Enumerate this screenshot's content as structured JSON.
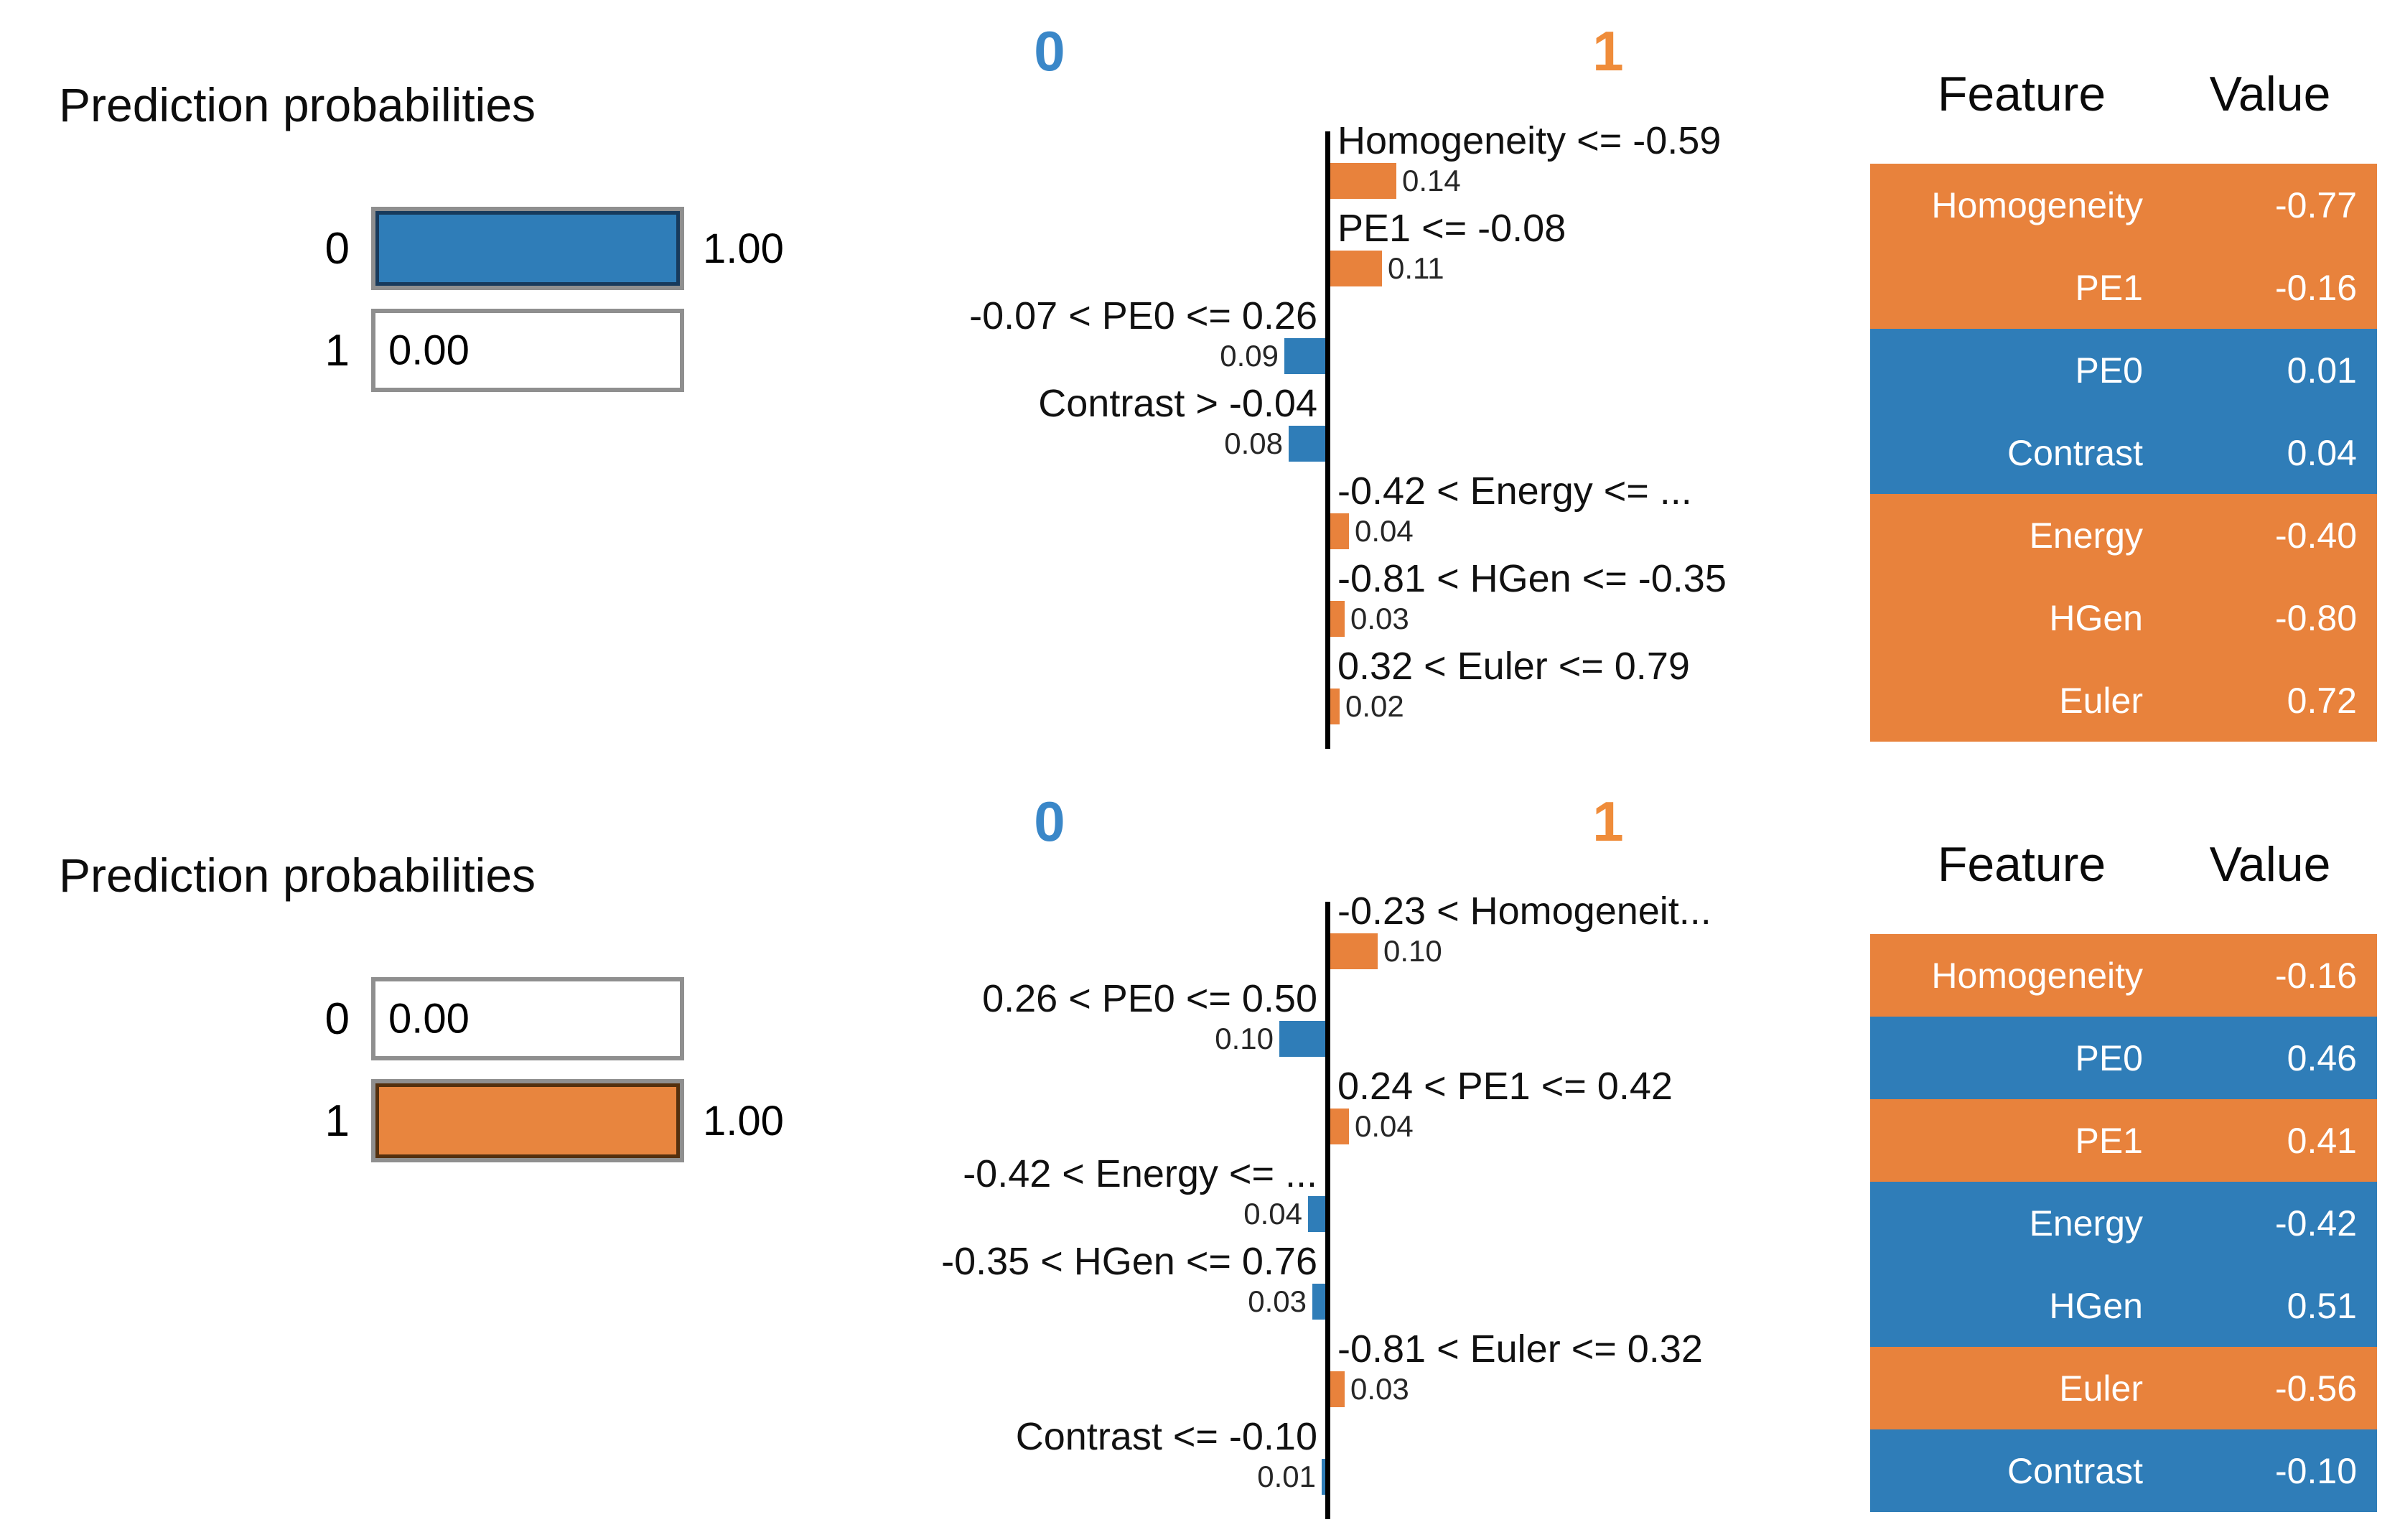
{
  "colors": {
    "class0_blue": "#2f7db8",
    "class1_orange": "#e8823c",
    "header0_blue": "#3a87c8",
    "header1_orange": "#ef8c3a"
  },
  "explanations": [
    {
      "prediction": {
        "title": "Prediction probabilities",
        "classes": [
          {
            "label": "0",
            "prob": 1,
            "prob_label": "1.00",
            "fill": "blue"
          },
          {
            "label": "1",
            "prob": 0,
            "prob_label": "0.00",
            "fill": "none"
          }
        ]
      },
      "chart": {
        "class0_header": "0",
        "class1_header": "1",
        "features": [
          {
            "label": "Homogeneity <= -0.59",
            "weight": 0.14,
            "weight_label": "0.14",
            "side": "right",
            "supports_class": "1"
          },
          {
            "label": "PE1 <= -0.08",
            "weight": 0.11,
            "weight_label": "0.11",
            "side": "right",
            "supports_class": "1"
          },
          {
            "label": "-0.07 < PE0 <= 0.26",
            "weight": 0.09,
            "weight_label": "0.09",
            "side": "left",
            "supports_class": "0"
          },
          {
            "label": "Contrast > -0.04",
            "weight": 0.08,
            "weight_label": "0.08",
            "side": "left",
            "supports_class": "0"
          },
          {
            "label": "-0.42 < Energy <= ...",
            "weight": 0.04,
            "weight_label": "0.04",
            "side": "right",
            "supports_class": "1"
          },
          {
            "label": "-0.81 < HGen <= -0.35",
            "weight": 0.03,
            "weight_label": "0.03",
            "side": "right",
            "supports_class": "1"
          },
          {
            "label": "0.32 < Euler <= 0.79",
            "weight": 0.02,
            "weight_label": "0.02",
            "side": "right",
            "supports_class": "1"
          }
        ]
      },
      "table": {
        "feature_header": "Feature",
        "value_header": "Value",
        "rows": [
          {
            "feature": "Homogeneity",
            "value": "-0.77",
            "color": "orange"
          },
          {
            "feature": "PE1",
            "value": "-0.16",
            "color": "orange"
          },
          {
            "feature": "PE0",
            "value": "0.01",
            "color": "blue"
          },
          {
            "feature": "Contrast",
            "value": "0.04",
            "color": "blue"
          },
          {
            "feature": "Energy",
            "value": "-0.40",
            "color": "orange"
          },
          {
            "feature": "HGen",
            "value": "-0.80",
            "color": "orange"
          },
          {
            "feature": "Euler",
            "value": "0.72",
            "color": "orange"
          }
        ]
      }
    },
    {
      "prediction": {
        "title": "Prediction probabilities",
        "classes": [
          {
            "label": "0",
            "prob": 0,
            "prob_label": "0.00",
            "fill": "none"
          },
          {
            "label": "1",
            "prob": 1,
            "prob_label": "1.00",
            "fill": "orange"
          }
        ]
      },
      "chart": {
        "class0_header": "0",
        "class1_header": "1",
        "features": [
          {
            "label": "-0.23 < Homogeneit...",
            "weight": 0.1,
            "weight_label": "0.10",
            "side": "right",
            "supports_class": "1"
          },
          {
            "label": "0.26 < PE0 <= 0.50",
            "weight": 0.1,
            "weight_label": "0.10",
            "side": "left",
            "supports_class": "0"
          },
          {
            "label": "0.24 < PE1 <= 0.42",
            "weight": 0.04,
            "weight_label": "0.04",
            "side": "right",
            "supports_class": "1"
          },
          {
            "label": "-0.42 < Energy <= ...",
            "weight": 0.04,
            "weight_label": "0.04",
            "side": "left",
            "supports_class": "0"
          },
          {
            "label": "-0.35 < HGen <= 0.76",
            "weight": 0.03,
            "weight_label": "0.03",
            "side": "left",
            "supports_class": "0"
          },
          {
            "label": "-0.81 < Euler <= 0.32",
            "weight": 0.03,
            "weight_label": "0.03",
            "side": "right",
            "supports_class": "1"
          },
          {
            "label": "Contrast <= -0.10",
            "weight": 0.01,
            "weight_label": "0.01",
            "side": "left",
            "supports_class": "0"
          }
        ]
      },
      "table": {
        "feature_header": "Feature",
        "value_header": "Value",
        "rows": [
          {
            "feature": "Homogeneity",
            "value": "-0.16",
            "color": "orange"
          },
          {
            "feature": "PE0",
            "value": "0.46",
            "color": "blue"
          },
          {
            "feature": "PE1",
            "value": "0.41",
            "color": "orange"
          },
          {
            "feature": "Energy",
            "value": "-0.42",
            "color": "blue"
          },
          {
            "feature": "HGen",
            "value": "0.51",
            "color": "blue"
          },
          {
            "feature": "Euler",
            "value": "-0.56",
            "color": "orange"
          },
          {
            "feature": "Contrast",
            "value": "-0.10",
            "color": "blue"
          }
        ]
      }
    }
  ],
  "chart_data": [
    {
      "type": "bar",
      "title": "Prediction probabilities",
      "legend": [
        "0",
        "1"
      ],
      "prediction_probabilities": {
        "0": 1.0,
        "1": 0.0
      },
      "feature_contributions": [
        {
          "condition": "Homogeneity <= -0.59",
          "weight": 0.14,
          "supports_class": "1"
        },
        {
          "condition": "PE1 <= -0.08",
          "weight": 0.11,
          "supports_class": "1"
        },
        {
          "condition": "-0.07 < PE0 <= 0.26",
          "weight": 0.09,
          "supports_class": "0"
        },
        {
          "condition": "Contrast > -0.04",
          "weight": 0.08,
          "supports_class": "0"
        },
        {
          "condition": "-0.42 < Energy <= ...",
          "weight": 0.04,
          "supports_class": "1"
        },
        {
          "condition": "-0.81 < HGen <= -0.35",
          "weight": 0.03,
          "supports_class": "1"
        },
        {
          "condition": "0.32 < Euler <= 0.79",
          "weight": 0.02,
          "supports_class": "1"
        }
      ],
      "feature_values": {
        "Homogeneity": -0.77,
        "PE1": -0.16,
        "PE0": 0.01,
        "Contrast": 0.04,
        "Energy": -0.4,
        "HGen": -0.8,
        "Euler": 0.72
      }
    },
    {
      "type": "bar",
      "title": "Prediction probabilities",
      "legend": [
        "0",
        "1"
      ],
      "prediction_probabilities": {
        "0": 0.0,
        "1": 1.0
      },
      "feature_contributions": [
        {
          "condition": "-0.23 < Homogeneit...",
          "weight": 0.1,
          "supports_class": "1"
        },
        {
          "condition": "0.26 < PE0 <= 0.50",
          "weight": 0.1,
          "supports_class": "0"
        },
        {
          "condition": "0.24 < PE1 <= 0.42",
          "weight": 0.04,
          "supports_class": "1"
        },
        {
          "condition": "-0.42 < Energy <= ...",
          "weight": 0.04,
          "supports_class": "0"
        },
        {
          "condition": "-0.35 < HGen <= 0.76",
          "weight": 0.03,
          "supports_class": "0"
        },
        {
          "condition": "-0.81 < Euler <= 0.32",
          "weight": 0.03,
          "supports_class": "1"
        },
        {
          "condition": "Contrast <= -0.10",
          "weight": 0.01,
          "supports_class": "0"
        }
      ],
      "feature_values": {
        "Homogeneity": -0.16,
        "PE0": 0.46,
        "PE1": 0.41,
        "Energy": -0.42,
        "HGen": 0.51,
        "Euler": -0.56,
        "Contrast": -0.1
      }
    }
  ]
}
